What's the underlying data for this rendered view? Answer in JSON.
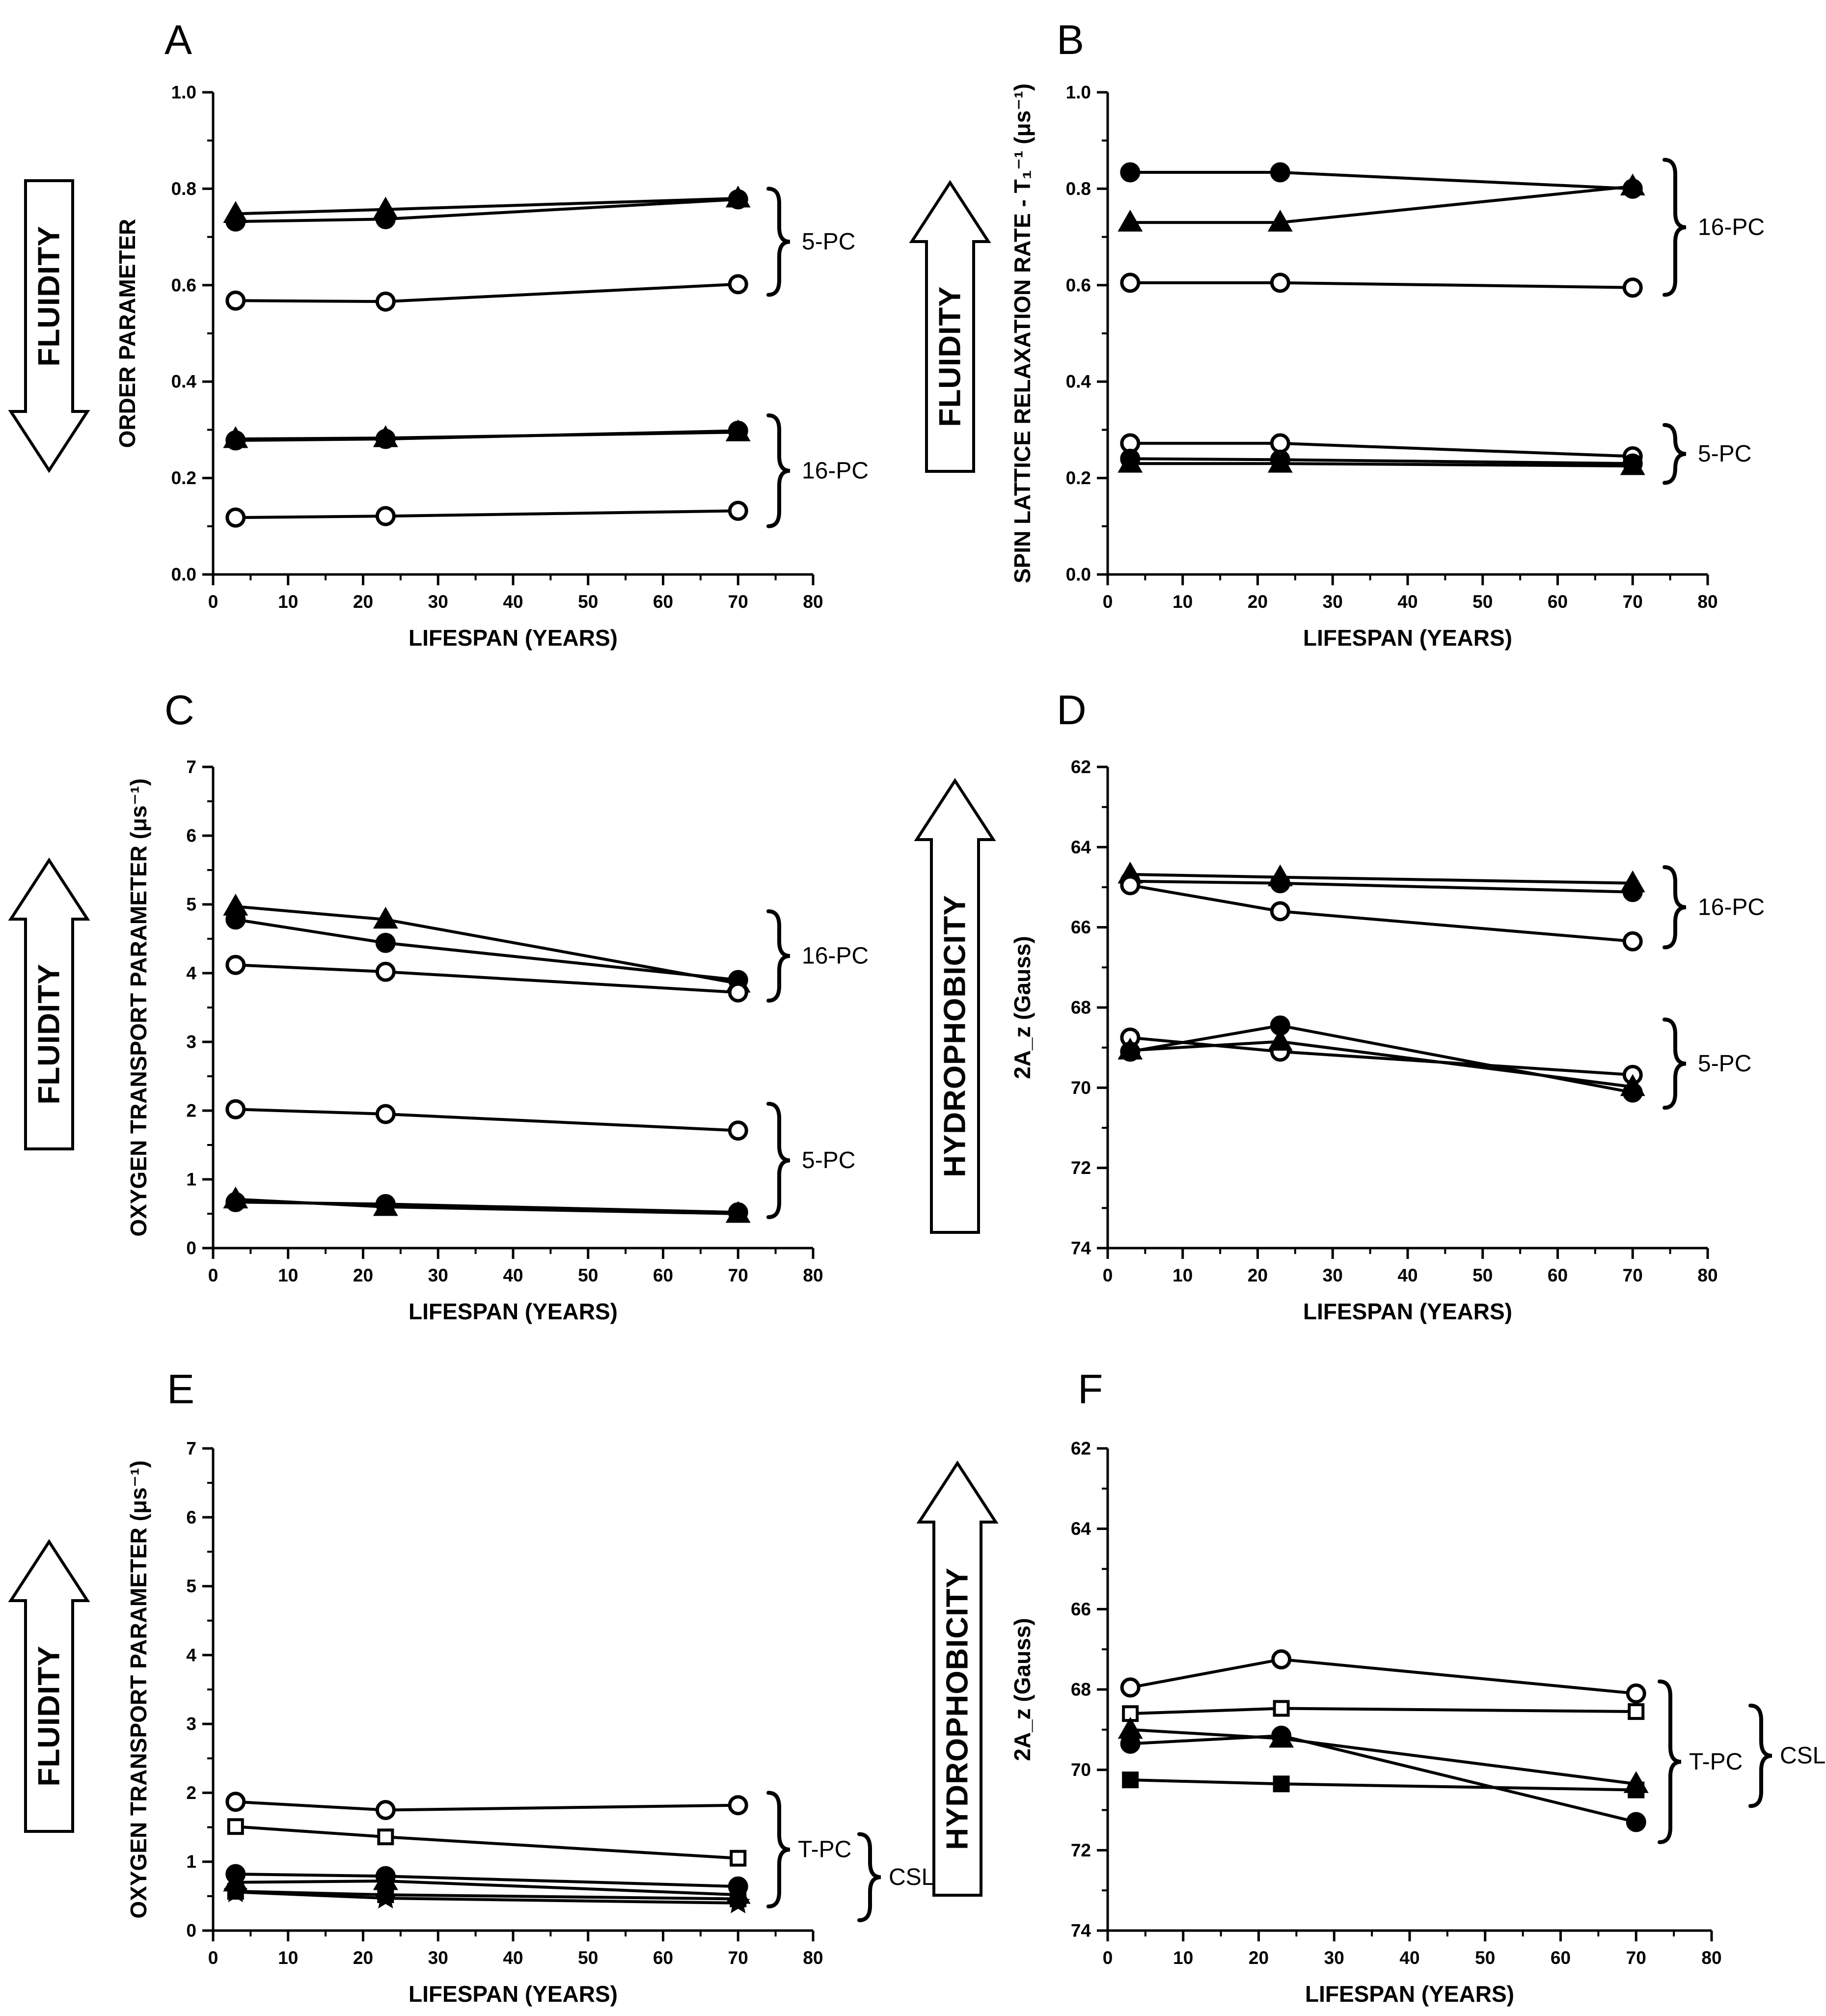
{
  "figure": {
    "title": "",
    "styles": {
      "open": {
        "marker": "circle",
        "fill": "#ffffff"
      },
      "filled_circle": {
        "marker": "circle",
        "fill": "#000000"
      },
      "filled_triangle": {
        "marker": "triangle",
        "fill": "#000000"
      },
      "open_square": {
        "marker": "square",
        "fill": "#ffffff"
      },
      "filled_square": {
        "marker": "square",
        "fill": "#000000"
      },
      "filled_star": {
        "marker": "star",
        "fill": "#000000"
      }
    }
  },
  "chart_data": [
    {
      "panel": "A",
      "type": "line",
      "xlabel": "LIFESPAN (YEARS)",
      "ylabel": "ORDER PARAMETER",
      "xlim": [
        0,
        80
      ],
      "ylim": [
        0,
        1.0
      ],
      "reversed_y": false,
      "xticks": [
        0,
        10,
        20,
        30,
        40,
        50,
        60,
        70,
        80
      ],
      "yticks": [
        0.0,
        0.2,
        0.4,
        0.6,
        0.8,
        1.0
      ],
      "ytick_labels": [
        "0.0",
        "0.2",
        "0.4",
        "0.6",
        "0.8",
        "1.0"
      ],
      "series": [
        {
          "style": "filled_triangle",
          "x": [
            3,
            23,
            70
          ],
          "y": [
            0.748,
            0.757,
            0.78
          ]
        },
        {
          "style": "filled_circle",
          "x": [
            3,
            23,
            70
          ],
          "y": [
            0.732,
            0.737,
            0.778
          ]
        },
        {
          "style": "open",
          "x": [
            3,
            23,
            70
          ],
          "y": [
            0.568,
            0.566,
            0.602
          ]
        },
        {
          "style": "filled_triangle",
          "x": [
            3,
            23,
            70
          ],
          "y": [
            0.281,
            0.283,
            0.295
          ]
        },
        {
          "style": "filled_circle",
          "x": [
            3,
            23,
            70
          ],
          "y": [
            0.278,
            0.281,
            0.298
          ]
        },
        {
          "style": "open",
          "x": [
            3,
            23,
            70
          ],
          "y": [
            0.118,
            0.121,
            0.132
          ]
        }
      ],
      "groups": [
        {
          "label": "5-PC",
          "range": [
            0.58,
            0.8
          ]
        },
        {
          "label": "16-PC",
          "range": [
            0.1,
            0.33
          ]
        }
      ],
      "arrow": {
        "label": "FLUIDITY",
        "direction": "down"
      }
    },
    {
      "panel": "B",
      "type": "line",
      "xlabel": "LIFESPAN (YEARS)",
      "ylabel": "SPIN LATTICE RELAXATION RATE - T₁⁻¹ (μs⁻¹)",
      "xlim": [
        0,
        80
      ],
      "ylim": [
        0,
        1.0
      ],
      "reversed_y": false,
      "xticks": [
        0,
        10,
        20,
        30,
        40,
        50,
        60,
        70,
        80
      ],
      "yticks": [
        0.0,
        0.2,
        0.4,
        0.6,
        0.8,
        1.0
      ],
      "ytick_labels": [
        "0.0",
        "0.2",
        "0.4",
        "0.6",
        "0.8",
        "1.0"
      ],
      "series": [
        {
          "style": "filled_circle",
          "x": [
            3,
            23,
            70
          ],
          "y": [
            0.834,
            0.834,
            0.8
          ]
        },
        {
          "style": "filled_triangle",
          "x": [
            3,
            23,
            70
          ],
          "y": [
            0.73,
            0.73,
            0.805
          ]
        },
        {
          "style": "open",
          "x": [
            3,
            23,
            70
          ],
          "y": [
            0.605,
            0.605,
            0.595
          ]
        },
        {
          "style": "open",
          "x": [
            3,
            23,
            70
          ],
          "y": [
            0.272,
            0.272,
            0.245
          ]
        },
        {
          "style": "filled_circle",
          "x": [
            3,
            23,
            70
          ],
          "y": [
            0.24,
            0.238,
            0.23
          ]
        },
        {
          "style": "filled_triangle",
          "x": [
            3,
            23,
            70
          ],
          "y": [
            0.23,
            0.23,
            0.225
          ]
        }
      ],
      "groups": [
        {
          "label": "16-PC",
          "range": [
            0.58,
            0.86
          ]
        },
        {
          "label": "5-PC",
          "range": [
            0.19,
            0.31
          ]
        }
      ],
      "arrow": {
        "label": "FLUIDITY",
        "direction": "up"
      }
    },
    {
      "panel": "C",
      "type": "line",
      "xlabel": "LIFESPAN (YEARS)",
      "ylabel": "OXYGEN TRANSPORT PARAMETER (μs⁻¹)",
      "xlim": [
        0,
        80
      ],
      "ylim": [
        0,
        7
      ],
      "reversed_y": false,
      "xticks": [
        0,
        10,
        20,
        30,
        40,
        50,
        60,
        70,
        80
      ],
      "yticks": [
        0,
        1,
        2,
        3,
        4,
        5,
        6,
        7
      ],
      "ytick_labels": [
        "0",
        "1",
        "2",
        "3",
        "4",
        "5",
        "6",
        "7"
      ],
      "series": [
        {
          "style": "filled_triangle",
          "x": [
            3,
            23,
            70
          ],
          "y": [
            4.97,
            4.78,
            3.85
          ]
        },
        {
          "style": "filled_circle",
          "x": [
            3,
            23,
            70
          ],
          "y": [
            4.78,
            4.44,
            3.9
          ]
        },
        {
          "style": "open",
          "x": [
            3,
            23,
            70
          ],
          "y": [
            4.12,
            4.02,
            3.72
          ]
        },
        {
          "style": "open",
          "x": [
            3,
            23,
            70
          ],
          "y": [
            2.02,
            1.95,
            1.71
          ]
        },
        {
          "style": "filled_triangle",
          "x": [
            3,
            23,
            70
          ],
          "y": [
            0.71,
            0.6,
            0.5
          ]
        },
        {
          "style": "filled_circle",
          "x": [
            3,
            23,
            70
          ],
          "y": [
            0.67,
            0.64,
            0.52
          ]
        }
      ],
      "groups": [
        {
          "label": "16-PC",
          "range": [
            3.6,
            4.9
          ]
        },
        {
          "label": "5-PC",
          "range": [
            0.45,
            2.1
          ]
        }
      ],
      "arrow": {
        "label": "FLUIDITY",
        "direction": "up"
      }
    },
    {
      "panel": "D",
      "type": "line",
      "xlabel": "LIFESPAN (YEARS)",
      "ylabel": "2A_z (Gauss)",
      "xlim": [
        0,
        80
      ],
      "ylim": [
        62,
        74
      ],
      "reversed_y": true,
      "xticks": [
        0,
        10,
        20,
        30,
        40,
        50,
        60,
        70,
        80
      ],
      "yticks": [
        62,
        64,
        66,
        68,
        70,
        72,
        74
      ],
      "ytick_labels": [
        "62",
        "64",
        "66",
        "68",
        "70",
        "72",
        "74"
      ],
      "series": [
        {
          "style": "filled_triangle",
          "x": [
            3,
            23,
            70
          ],
          "y": [
            64.68,
            64.75,
            64.9
          ]
        },
        {
          "style": "filled_circle",
          "x": [
            3,
            23,
            70
          ],
          "y": [
            64.85,
            64.9,
            65.12
          ]
        },
        {
          "style": "open",
          "x": [
            3,
            23,
            70
          ],
          "y": [
            64.95,
            65.6,
            66.35
          ]
        },
        {
          "style": "open",
          "x": [
            3,
            23,
            70
          ],
          "y": [
            68.75,
            69.1,
            69.68
          ]
        },
        {
          "style": "filled_circle",
          "x": [
            3,
            23,
            70
          ],
          "y": [
            69.1,
            68.45,
            70.12
          ]
        },
        {
          "style": "filled_triangle",
          "x": [
            3,
            23,
            70
          ],
          "y": [
            69.07,
            68.85,
            69.98
          ]
        }
      ],
      "groups": [
        {
          "label": "16-PC",
          "range": [
            64.5,
            66.5
          ]
        },
        {
          "label": "5-PC",
          "range": [
            68.3,
            70.5
          ]
        }
      ],
      "arrow": {
        "label": "HYDROPHOBICITY",
        "direction": "up"
      }
    },
    {
      "panel": "E",
      "type": "line",
      "xlabel": "LIFESPAN (YEARS)",
      "ylabel": "OXYGEN TRANSPORT PARAMETER (μs⁻¹)",
      "xlim": [
        0,
        80
      ],
      "ylim": [
        0,
        7
      ],
      "reversed_y": false,
      "xticks": [
        0,
        10,
        20,
        30,
        40,
        50,
        60,
        70,
        80
      ],
      "yticks": [
        0,
        1,
        2,
        3,
        4,
        5,
        6,
        7
      ],
      "ytick_labels": [
        "0",
        "1",
        "2",
        "3",
        "4",
        "5",
        "6",
        "7"
      ],
      "series": [
        {
          "style": "open",
          "x": [
            3,
            23,
            70
          ],
          "y": [
            1.87,
            1.75,
            1.82
          ]
        },
        {
          "style": "open_square",
          "x": [
            3,
            23,
            70
          ],
          "y": [
            1.51,
            1.36,
            1.05
          ]
        },
        {
          "style": "filled_circle",
          "x": [
            3,
            23,
            70
          ],
          "y": [
            0.82,
            0.79,
            0.64
          ]
        },
        {
          "style": "filled_triangle",
          "x": [
            3,
            23,
            70
          ],
          "y": [
            0.7,
            0.72,
            0.52
          ]
        },
        {
          "style": "filled_square",
          "x": [
            3,
            23,
            70
          ],
          "y": [
            0.57,
            0.52,
            0.46
          ]
        },
        {
          "style": "filled_star",
          "x": [
            3,
            23,
            70
          ],
          "y": [
            0.56,
            0.47,
            0.4
          ]
        }
      ],
      "groups": [
        {
          "label": "T-PC",
          "range": [
            0.35,
            2.0
          ]
        },
        {
          "label": "CSL",
          "range": [
            0.15,
            1.4
          ]
        }
      ],
      "arrow": {
        "label": "FLUIDITY",
        "direction": "up"
      }
    },
    {
      "panel": "F",
      "type": "line",
      "xlabel": "LIFESPAN (YEARS)",
      "ylabel": "2A_z (Gauss)",
      "xlim": [
        0,
        80
      ],
      "ylim": [
        62,
        74
      ],
      "reversed_y": true,
      "xticks": [
        0,
        10,
        20,
        30,
        40,
        50,
        60,
        70,
        80
      ],
      "yticks": [
        62,
        64,
        66,
        68,
        70,
        72,
        74
      ],
      "ytick_labels": [
        "62",
        "64",
        "66",
        "68",
        "70",
        "72",
        "74"
      ],
      "series": [
        {
          "style": "open",
          "x": [
            3,
            23,
            70
          ],
          "y": [
            67.95,
            67.25,
            68.1
          ]
        },
        {
          "style": "open_square",
          "x": [
            3,
            23,
            70
          ],
          "y": [
            68.6,
            68.47,
            68.55
          ]
        },
        {
          "style": "filled_triangle",
          "x": [
            3,
            23,
            70
          ],
          "y": [
            69.0,
            69.22,
            70.35
          ]
        },
        {
          "style": "filled_circle",
          "x": [
            3,
            23,
            70
          ],
          "y": [
            69.35,
            69.15,
            71.3
          ]
        },
        {
          "style": "filled_square",
          "x": [
            3,
            23,
            70
          ],
          "y": [
            70.25,
            70.35,
            70.5
          ]
        }
      ],
      "groups": [
        {
          "label": "T-PC",
          "range": [
            67.8,
            71.8
          ]
        },
        {
          "label": "CSL",
          "range": [
            68.4,
            70.9
          ]
        }
      ],
      "arrow": {
        "label": "HYDROPHOBICITY",
        "direction": "up"
      }
    }
  ]
}
